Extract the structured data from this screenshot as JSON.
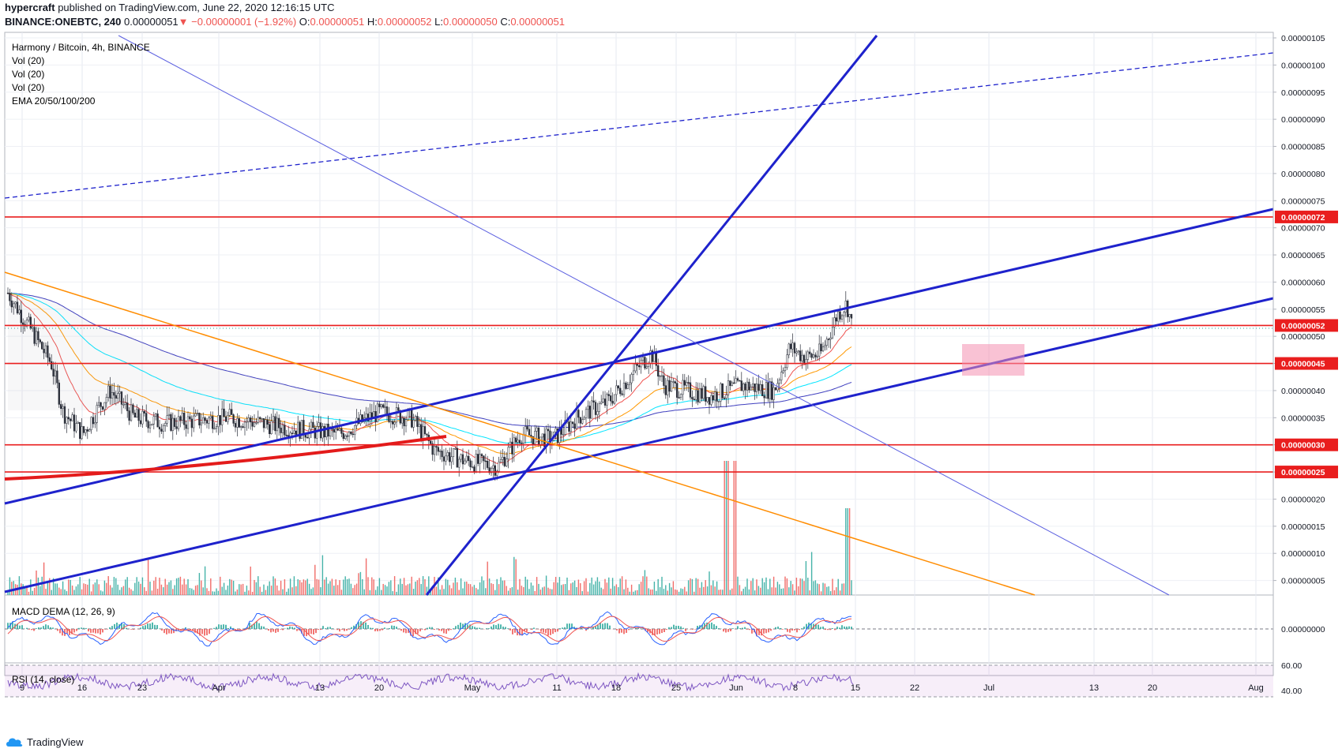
{
  "header": {
    "author": "hypercraft",
    "published": " published on TradingView.com, June 22, 2020 12:16:15 UTC",
    "symbol": "BINANCE:ONEBTC, 240",
    "last": "0.00000051",
    "down_arrow": "▼",
    "change": "−0.00000001 (−1.92%)",
    "o_label": "O:",
    "o": "0.00000051",
    "h_label": "H:",
    "h": "0.00000052",
    "l_label": "L:",
    "l": "0.00000050",
    "c_label": "C:",
    "c": "0.00000051"
  },
  "legend": {
    "title": "Harmony / Bitcoin, 4h, BINANCE",
    "vol": [
      "Vol (20)",
      "Vol (20)",
      "Vol (20)"
    ],
    "ema": "EMA 20/50/100/200"
  },
  "macd_label": "MACD DEMA (12, 26, 9)",
  "rsi_label": "RSI (14, close)",
  "footer": {
    "brand": "TradingView"
  },
  "colors": {
    "up": "#26a69a",
    "down": "#ef5350",
    "trend": "#1e22cc",
    "hline": "#e91e1e",
    "orange": "#ff8c00",
    "ema20": "#ef5350",
    "ema50": "#ff9800",
    "ema100": "#00e5ff",
    "ema200": "#3f3fbf",
    "label_bg": "#e91e1e"
  },
  "chart_data": {
    "type": "candlestick",
    "timeframe": "4h",
    "x_ticks": [
      "9",
      "16",
      "23",
      "Apr",
      "13",
      "20",
      "May",
      "11",
      "18",
      "25",
      "Jun",
      "8",
      "15",
      "22",
      "Jul",
      "13",
      "20",
      "Aug"
    ],
    "y_ticks": [
      "0.00000105",
      "0.00000100",
      "0.00000095",
      "0.00000090",
      "0.00000085",
      "0.00000080",
      "0.00000075",
      "0.00000070",
      "0.00000065",
      "0.00000060",
      "0.00000055",
      "0.00000050",
      "0.00000045",
      "0.00000040",
      "0.00000035",
      "0.00000030",
      "0.00000025",
      "0.00000020",
      "0.00000015",
      "0.00000010",
      "0.00000005"
    ],
    "y_range": [
      1e-08,
      1.065e-06
    ],
    "price_levels": [
      {
        "label": "0.00000072",
        "value": 7.2e-07
      },
      {
        "label": "0.00000052",
        "value": 5.2e-07
      },
      {
        "label": "0.00000045",
        "value": 4.5e-07
      },
      {
        "label": "0.00000030",
        "value": 3e-07
      },
      {
        "label": "0.00000025",
        "value": 2.5e-07
      }
    ],
    "price_path": [
      [
        0,
        5.8e-07
      ],
      [
        30,
        5.1e-07
      ],
      [
        55,
        4.5e-07
      ],
      [
        70,
        3.6e-07
      ],
      [
        95,
        3.2e-07
      ],
      [
        115,
        3.7e-07
      ],
      [
        130,
        4e-07
      ],
      [
        160,
        3.5e-07
      ],
      [
        200,
        3.4e-07
      ],
      [
        280,
        3.5e-07
      ],
      [
        360,
        3.3e-07
      ],
      [
        420,
        3.2e-07
      ],
      [
        470,
        3.6e-07
      ],
      [
        510,
        3.5e-07
      ],
      [
        540,
        2.9e-07
      ],
      [
        580,
        2.7e-07
      ],
      [
        620,
        2.6e-07
      ],
      [
        650,
        3.2e-07
      ],
      [
        690,
        3.1e-07
      ],
      [
        720,
        3.5e-07
      ],
      [
        760,
        3.8e-07
      ],
      [
        790,
        4.3e-07
      ],
      [
        815,
        4.7e-07
      ],
      [
        830,
        4.1e-07
      ],
      [
        860,
        4e-07
      ],
      [
        890,
        3.9e-07
      ],
      [
        930,
        4.1e-07
      ],
      [
        970,
        4e-07
      ],
      [
        990,
        4.8e-07
      ],
      [
        1010,
        4.6e-07
      ],
      [
        1030,
        4.7e-07
      ],
      [
        1050,
        5.4e-07
      ],
      [
        1062,
        5.6e-07
      ],
      [
        1070,
        5.1e-07
      ]
    ],
    "macd_ticks": [
      "0.00000000"
    ],
    "rsi_ticks": [
      "60.00",
      "40.00"
    ]
  }
}
